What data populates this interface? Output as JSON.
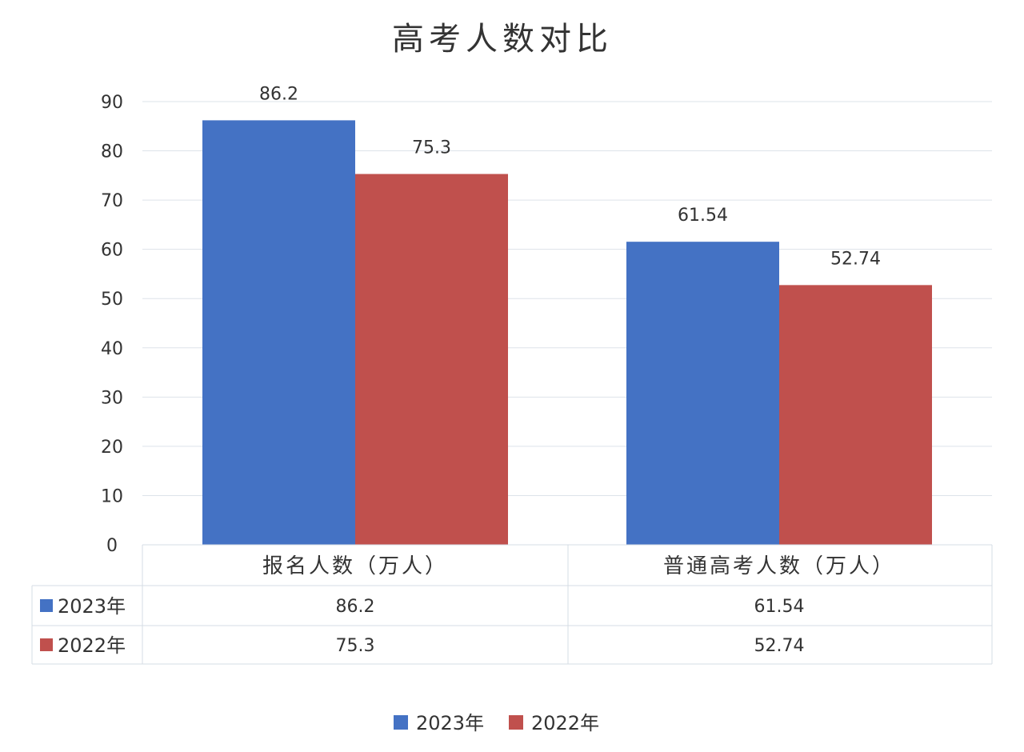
{
  "chart_data": {
    "type": "bar",
    "title": "高考人数对比",
    "categories": [
      "报名人数（万人）",
      "普通高考人数（万人）"
    ],
    "series": [
      {
        "name": "2023年",
        "color": "#4472c4",
        "values": [
          86.2,
          61.54
        ],
        "labels": [
          "86.2",
          "61.54"
        ]
      },
      {
        "name": "2022年",
        "color": "#c0504d",
        "values": [
          75.3,
          52.74
        ],
        "labels": [
          "75.3",
          "52.74"
        ]
      }
    ],
    "ylim": [
      0,
      90
    ],
    "yticks": [
      0,
      10,
      20,
      30,
      40,
      50,
      60,
      70,
      80,
      90
    ],
    "grid": true,
    "legend_position": "bottom",
    "data_table": true
  }
}
